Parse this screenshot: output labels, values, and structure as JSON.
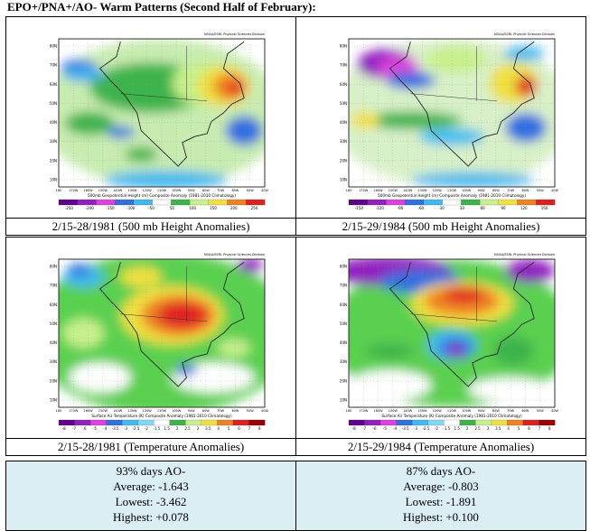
{
  "title": "EPO+/PNA+/AO- Warm Patterns (Second Half of February):",
  "lat_labels": [
    "80N",
    "70N",
    "60N",
    "50N",
    "40N",
    "30N",
    "20N",
    "10N"
  ],
  "lon_labels": [
    "180",
    "170W",
    "160W",
    "150W",
    "140W",
    "130W",
    "120W",
    "110W",
    "100W",
    "90W",
    "80W",
    "70W",
    "60W",
    "50W",
    "40W"
  ],
  "panels": [
    {
      "header": "NOAA/ESRL Physical Sciences Division",
      "map_title": "500mb Geopotential Height (m) Composite Anomaly (1981-2010 Climatology)",
      "colorbar_ticks": [
        "-250",
        "-200",
        "-150",
        "-100",
        "-50",
        "50",
        "100",
        "150",
        "200",
        "250"
      ],
      "caption": "2/15-28/1981 (500 mb Height Anomalies)"
    },
    {
      "header": "NOAA/ESRL Physical Sciences Division",
      "map_title": "500mb Geopotential Height (m) Composite Anomaly (1981-2010 Climatology)",
      "colorbar_ticks": [
        "-150",
        "-120",
        "-90",
        "-60",
        "-30",
        "30",
        "60",
        "90",
        "120",
        "150"
      ],
      "caption": "2/15-29/1984 (500 mb Height Anomalies)"
    },
    {
      "header": "NOAA/ESRL Physical Sciences Division",
      "map_title": "Surface Air Temperature (K) Composite Anomaly (1981-2010 Climatology)",
      "colorbar_ticks": [
        "-8",
        "-7",
        "-6",
        "-5",
        "-4",
        "-3.5",
        "-3",
        "-2.5",
        "-2",
        "-1.5",
        "1.5",
        "2",
        "2.5",
        "3",
        "3.5",
        "4",
        "5",
        "6",
        "7",
        "8"
      ],
      "caption": "2/15-28/1981 (Temperature Anomalies)"
    },
    {
      "header": "NOAA/ESRL Physical Sciences Division",
      "map_title": "Surface Air Temperature (K) Composite Anomaly (1981-2010 Climatology)",
      "colorbar_ticks": [
        "-8",
        "-7",
        "-6",
        "-5",
        "-4",
        "-3.5",
        "-3",
        "-2.5",
        "-2",
        "-1.5",
        "1.5",
        "2",
        "2.5",
        "3",
        "3.5",
        "4",
        "5",
        "6",
        "7",
        "8"
      ],
      "caption": "2/15-29/1984 (Temperature Anomalies)"
    }
  ],
  "stats": [
    {
      "days": "93% days AO-",
      "average": "Average: -1.643",
      "lowest": "Lowest: -3.462",
      "highest": "Highest: +0.078"
    },
    {
      "days": "87% days AO-",
      "average": "Average: -0.803",
      "lowest": "Lowest: -1.891",
      "highest": "Highest: +0.100"
    }
  ]
}
